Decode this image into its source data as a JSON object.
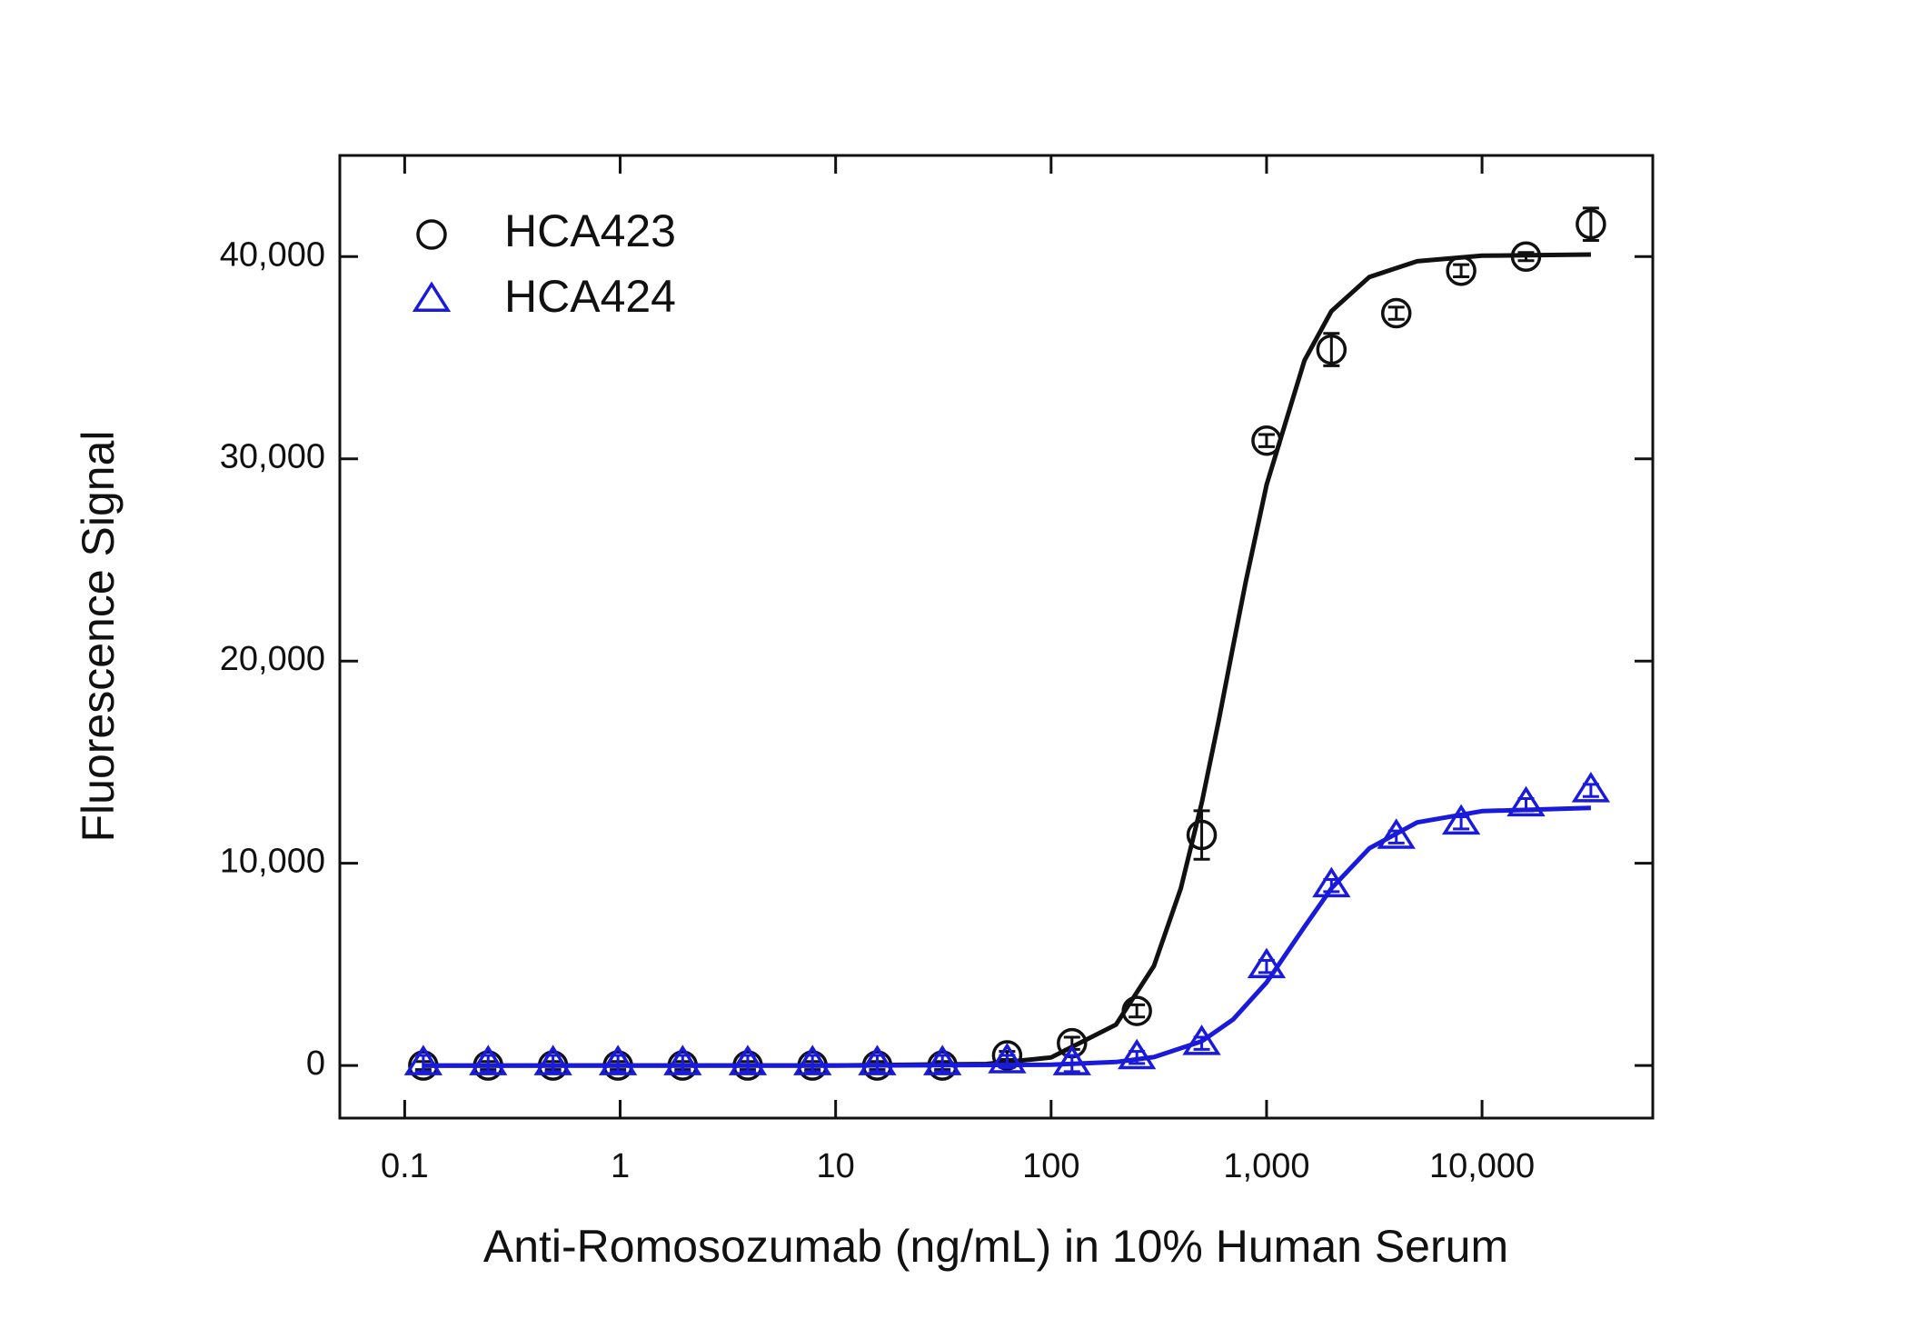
{
  "chart_data": {
    "type": "scatter",
    "x_label": "Anti-Romosozumab (ng/mL) in 10% Human Serum",
    "y_label": "Fluorescence Signal",
    "xscale": "log",
    "xlim": [
      0.05,
      62000
    ],
    "ylim": [
      -2600,
      45000
    ],
    "xticks": [
      0.1,
      1,
      10,
      100,
      {
        "value": 1000,
        "label": "1,000"
      },
      {
        "value": 10000,
        "label": "10,000"
      }
    ],
    "yticks": [
      0,
      {
        "value": 10000,
        "label": "10,000"
      },
      {
        "value": 20000,
        "label": "20,000"
      },
      {
        "value": 30000,
        "label": "30,000"
      },
      {
        "value": 40000,
        "label": "40,000"
      }
    ],
    "legend": "top-left",
    "x": [
      0.122,
      0.244,
      0.488,
      0.977,
      1.95,
      3.91,
      7.81,
      15.6,
      31.3,
      62.5,
      125,
      250,
      500,
      1000,
      2000,
      4000,
      8000,
      16000,
      32000
    ],
    "series": [
      {
        "name": "HCA423",
        "color": "#111111",
        "marker": "circle",
        "values": [
          0,
          0,
          0,
          0,
          0,
          0,
          0,
          0,
          0,
          500,
          1100,
          2700,
          11400,
          30900,
          35400,
          37200,
          39300,
          40000,
          41600
        ],
        "errors": [
          200,
          200,
          200,
          200,
          200,
          200,
          200,
          200,
          200,
          200,
          300,
          300,
          1200,
          300,
          800,
          300,
          300,
          200,
          800
        ],
        "fit": {
          "x": [
            0.122,
            10,
            50,
            100,
            200,
            300,
            400,
            500,
            600,
            700,
            800,
            1000,
            1500,
            2000,
            3000,
            5000,
            10000,
            32000
          ],
          "values": [
            0,
            2,
            76,
            399,
            2019,
            4926,
            8765,
            12990,
            17060,
            20750,
            23910,
            28720,
            34870,
            37300,
            38990,
            39770,
            40040,
            40100
          ]
        }
      },
      {
        "name": "HCA424",
        "color": "#1a1adc",
        "marker": "triangle",
        "values": [
          100,
          100,
          100,
          100,
          100,
          100,
          100,
          100,
          100,
          200,
          100,
          400,
          1100,
          4900,
          8900,
          11300,
          12000,
          12900,
          13600
        ],
        "errors": [
          400,
          400,
          400,
          400,
          400,
          400,
          400,
          400,
          400,
          300,
          400,
          300,
          300,
          300,
          300,
          300,
          300,
          300,
          300
        ],
        "fit": {
          "x": [
            0.122,
            10,
            100,
            200,
            300,
            500,
            700,
            1000,
            1500,
            2000,
            3000,
            5000,
            10000,
            32000
          ],
          "values": [
            0,
            0,
            38,
            174,
            417,
            1198,
            2280,
            4110,
            6860,
            8760,
            10740,
            12020,
            12580,
            12740
          ]
        }
      }
    ]
  }
}
